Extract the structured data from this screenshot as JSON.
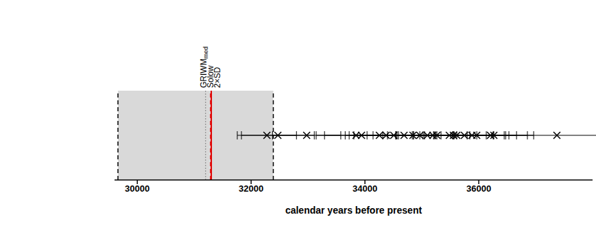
{
  "chart_data": {
    "type": "scatter",
    "x_label": "calendar years before present",
    "x": [
      32277,
      32470,
      32976,
      33843,
      33940,
      34253,
      34373,
      34506,
      34687,
      34843,
      34964,
      35096,
      35193,
      35265,
      35482,
      35554,
      35614,
      35747,
      35880,
      35964,
      36205,
      36265,
      37373
    ],
    "x_error": [
      520,
      640,
      600,
      700,
      650,
      600,
      650,
      700,
      650,
      700,
      650,
      700,
      650,
      700,
      650,
      700,
      650,
      700,
      650,
      700,
      650,
      700,
      900
    ],
    "marker": "x",
    "color": "#000000",
    "xlim": [
      29600,
      38000
    ],
    "xticks": [
      30000,
      32000,
      34000,
      36000
    ],
    "tick_labels": "x",
    "shaded_range": {
      "x": [
        29660,
        32390
      ],
      "color": "#d9d9d9",
      "line_style": "dashed"
    },
    "reference_lines": [
      {
        "label": "GRIWM",
        "label_subscript": "med",
        "x": 31200,
        "color": "#808080",
        "line_style": "dotted"
      },
      {
        "label": "Solow",
        "x": 31290,
        "color": "#e00000",
        "line_style": "dashed"
      },
      {
        "label": "2×SD",
        "x": 31300,
        "color": "#e00000",
        "line_style": "solid"
      }
    ]
  }
}
